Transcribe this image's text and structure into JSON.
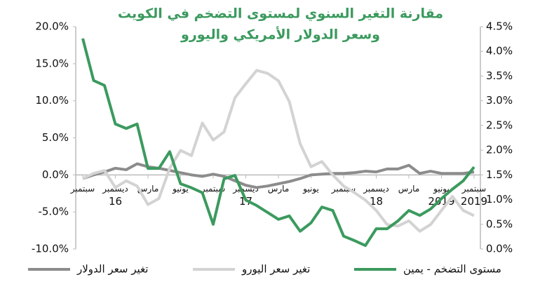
{
  "chart_data": {
    "type": "line",
    "title": [
      "مقارنة التغير السنوي لمستوى التضخم في الكويت",
      "وسعر الدولار الأمريكي واليورو"
    ],
    "categories": [
      "سبتمبر",
      null,
      null,
      "ديسمبر",
      null,
      null,
      "مارس",
      null,
      null,
      "يونيو",
      null,
      null,
      "سبتمبر",
      null,
      null,
      "ديسمبر",
      null,
      null,
      "مارس",
      null,
      null,
      "يونيو",
      null,
      null,
      "سبتمبر",
      null,
      null,
      "ديسمبر",
      null,
      null,
      "مارس",
      null,
      null,
      "يونيو",
      null,
      null,
      "سبتمبر"
    ],
    "category_years": [
      null,
      null,
      null,
      "16",
      null,
      null,
      null,
      null,
      null,
      null,
      null,
      null,
      null,
      null,
      null,
      "17",
      null,
      null,
      null,
      null,
      null,
      null,
      null,
      null,
      null,
      null,
      null,
      "18",
      null,
      null,
      null,
      null,
      null,
      "2019",
      null,
      null,
      "2019"
    ],
    "ylim": [
      -10,
      20
    ],
    "yticks": [
      {
        "value": -10,
        "label": "-10.0%"
      },
      {
        "value": -5,
        "label": "-5.0%"
      },
      {
        "value": 0,
        "label": "0.0%"
      },
      {
        "value": 5,
        "label": "5.0%"
      },
      {
        "value": 10,
        "label": "10.0%"
      },
      {
        "value": 15,
        "label": "15.0%"
      },
      {
        "value": 20,
        "label": "20.0%"
      }
    ],
    "y2lim": [
      0,
      4.5
    ],
    "y2ticks": [
      {
        "value": 0,
        "label": "0.0%"
      },
      {
        "value": 0.5,
        "label": "0.5%"
      },
      {
        "value": 1,
        "label": "1.0%"
      },
      {
        "value": 1.5,
        "label": "1.5%"
      },
      {
        "value": 2,
        "label": "2.0%"
      },
      {
        "value": 2.5,
        "label": "2.5%"
      },
      {
        "value": 3,
        "label": "3.0%"
      },
      {
        "value": 3.5,
        "label": "3.5%"
      },
      {
        "value": 4,
        "label": "4.0%"
      },
      {
        "value": 4.5,
        "label": "4.5%"
      }
    ],
    "grid": false,
    "series": [
      {
        "name": "تغير سعر الدولار",
        "color": "#8c8c8c",
        "values": [
          -0.5,
          0,
          0.4,
          0.9,
          0.7,
          1.5,
          1.1,
          0.9,
          0.6,
          0.3,
          0,
          -0.2,
          0.1,
          -0.2,
          -0.8,
          -1.4,
          -1.7,
          -1.5,
          -1.2,
          -0.9,
          -0.5,
          0,
          0.1,
          0.2,
          0.2,
          0.3,
          0.5,
          0.4,
          0.8,
          0.8,
          1.3,
          0.2,
          0.5,
          0.2,
          0.2,
          0.2,
          0.4
        ]
      },
      {
        "name": "تغير سعر اليورو",
        "color": "#d3d3d3",
        "values": [
          -0.5,
          0.2,
          0.6,
          -1.7,
          -0.8,
          -1.5,
          -4.0,
          -3.2,
          0.9,
          3.3,
          2.6,
          7.0,
          4.7,
          5.8,
          10.4,
          12.3,
          14.1,
          13.7,
          12.7,
          9.9,
          4.2,
          1.1,
          1.8,
          0,
          -1.5,
          -2.4,
          -3.4,
          -4.8,
          -6.7,
          -6.9,
          -6.2,
          -7.6,
          -6.7,
          -4.8,
          -2.9,
          -4.8,
          -5.5
        ]
      },
      {
        "name": "مستوى التضخم - يمين",
        "color": "#3b9a5e",
        "axis": "y2",
        "values": [
          4.26,
          3.41,
          3.31,
          2.53,
          2.44,
          2.53,
          1.63,
          1.63,
          1.97,
          1.32,
          1.24,
          1.14,
          0.5,
          1.42,
          1.49,
          0.99,
          0.88,
          0.74,
          0.6,
          0.67,
          0.36,
          0.53,
          0.85,
          0.78,
          0.26,
          0.17,
          0.07,
          0.41,
          0.41,
          0.57,
          0.78,
          0.68,
          0.81,
          1.02,
          1.21,
          1.38,
          1.66
        ]
      }
    ]
  }
}
